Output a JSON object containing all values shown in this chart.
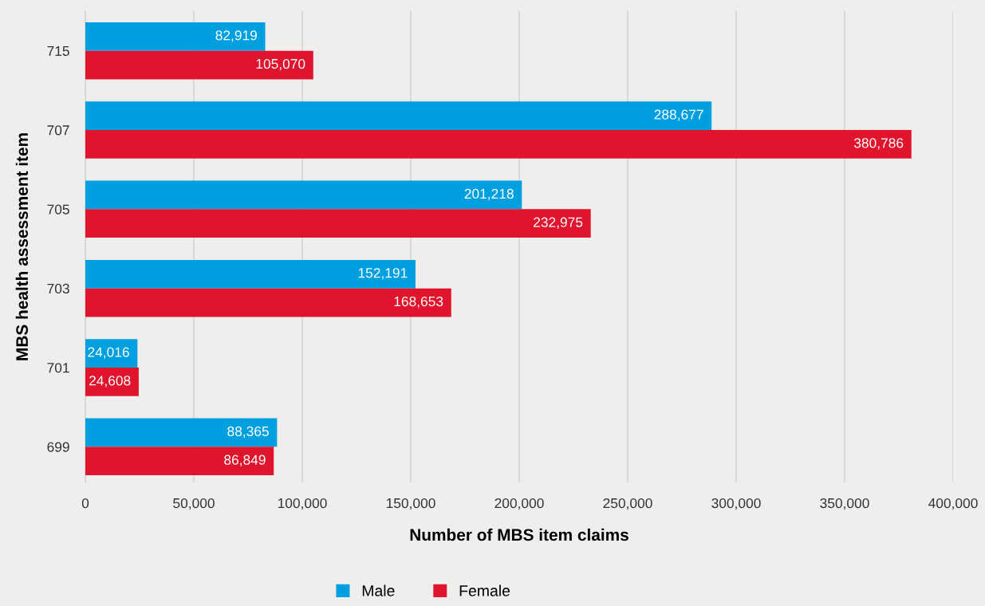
{
  "chart_data": {
    "type": "bar",
    "orientation": "horizontal",
    "xlabel": "Number of MBS item claims",
    "ylabel": "MBS health assessment item",
    "categories": [
      "715",
      "707",
      "705",
      "703",
      "701",
      "699"
    ],
    "series": [
      {
        "name": "Male",
        "color": "#009fdf",
        "values": [
          82919,
          288677,
          201218,
          152191,
          24016,
          88365
        ],
        "value_labels": [
          "82,919",
          "288,677",
          "201,218",
          "152,191",
          "24,016",
          "88,365"
        ]
      },
      {
        "name": "Female",
        "color": "#e0142c",
        "values": [
          105070,
          380786,
          232975,
          168653,
          24608,
          86849
        ],
        "value_labels": [
          "105,070",
          "380,786",
          "232,975",
          "168,653",
          "24,608",
          "86,849"
        ]
      }
    ],
    "xlim": [
      0,
      400000
    ],
    "xticks": [
      {
        "value": 0,
        "label": "0"
      },
      {
        "value": 50000,
        "label": "50,000"
      },
      {
        "value": 100000,
        "label": "100,000"
      },
      {
        "value": 150000,
        "label": "150,000"
      },
      {
        "value": 200000,
        "label": "200,000"
      },
      {
        "value": 250000,
        "label": "250,000"
      },
      {
        "value": 300000,
        "label": "300,000"
      },
      {
        "value": 350000,
        "label": "350,000"
      },
      {
        "value": 400000,
        "label": "400,000"
      }
    ],
    "grid": "x",
    "legend": "bottom"
  }
}
